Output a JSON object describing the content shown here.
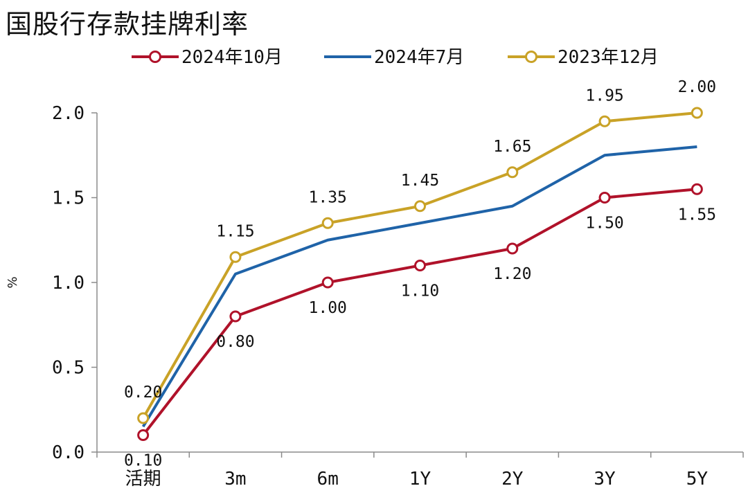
{
  "chart_data": {
    "type": "line",
    "title": "国股行存款挂牌利率",
    "ylabel": "%",
    "xlabel": "",
    "categories": [
      "活期",
      "3m",
      "6m",
      "1Y",
      "2Y",
      "3Y",
      "5Y"
    ],
    "ylim": [
      0,
      2.0
    ],
    "yticks": [
      "0.0",
      "0.5",
      "1.0",
      "1.5",
      "2.0"
    ],
    "legend_position": "top",
    "series": [
      {
        "name": "2024年10月",
        "color": "#b0122a",
        "markers": true,
        "values": [
          0.1,
          0.8,
          1.0,
          1.1,
          1.2,
          1.5,
          1.55
        ],
        "labels": [
          "0.10",
          "0.80",
          "1.00",
          "1.10",
          "1.20",
          "1.50",
          "1.55"
        ]
      },
      {
        "name": "2024年7月",
        "color": "#1f63a8",
        "markers": false,
        "values": [
          0.15,
          1.05,
          1.25,
          1.35,
          1.45,
          1.75,
          1.8
        ],
        "labels": []
      },
      {
        "name": "2023年12月",
        "color": "#c9a227",
        "markers": true,
        "values": [
          0.2,
          1.15,
          1.35,
          1.45,
          1.65,
          1.95,
          2.0
        ],
        "labels": [
          "0.20",
          "1.15",
          "1.35",
          "1.45",
          "1.65",
          "1.95",
          "2.00"
        ]
      }
    ]
  }
}
